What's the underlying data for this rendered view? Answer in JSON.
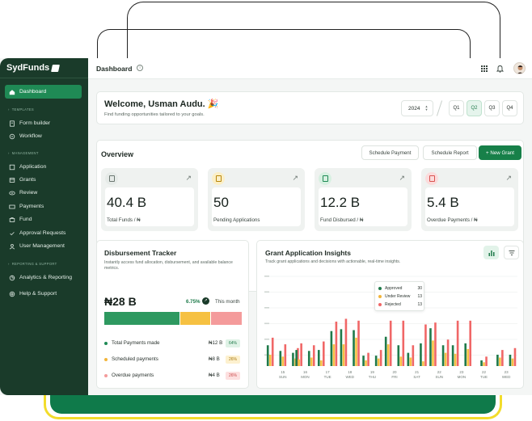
{
  "app": {
    "brand": "SydFunds",
    "page_title": "Dashboard"
  },
  "sidebar": {
    "items": [
      {
        "label": "Dashboard",
        "icon": "home-icon",
        "active": true
      },
      {
        "label": "Form builder",
        "icon": "form-icon"
      },
      {
        "label": "Workflow",
        "icon": "workflow-icon"
      },
      {
        "label": "Application",
        "icon": "application-icon"
      },
      {
        "label": "Grants",
        "icon": "grants-icon"
      },
      {
        "label": "Review",
        "icon": "eye-icon"
      },
      {
        "label": "Payments",
        "icon": "card-icon"
      },
      {
        "label": "Fund",
        "icon": "fund-icon"
      },
      {
        "label": "Approval Requests",
        "icon": "approval-icon"
      },
      {
        "label": "User Management",
        "icon": "users-icon"
      },
      {
        "label": "Analytics & Reporting",
        "icon": "analytics-icon"
      },
      {
        "label": "Help & Support",
        "icon": "help-icon"
      }
    ],
    "groups": {
      "templates": "Templates",
      "management": "Management",
      "reporting": "Reporting & Support"
    }
  },
  "welcome": {
    "greeting": "Welcome, Usman Audu.",
    "emoji": "🎉",
    "subtitle": "Find funding opportunities tailored to your goals.",
    "year": "2024",
    "quarters": [
      "Q1",
      "Q2",
      "Q3",
      "Q4"
    ],
    "active_quarter": "Q2"
  },
  "overview": {
    "title": "Overview",
    "actions": {
      "schedule_payment": "Schedule Payment",
      "schedule_report": "Schedule Report",
      "new_grant": "+ New Grant"
    },
    "stats": [
      {
        "value": "40.4 B",
        "label": "Total Funds / ₦",
        "icon_color": "#6b7771",
        "icon_bg": "#e6ebe8"
      },
      {
        "value": "50",
        "label": "Pending Applications",
        "icon_color": "#b8860b",
        "icon_bg": "#fbefc7"
      },
      {
        "value": "12.2 B",
        "label": "Fund Disbursed / ₦",
        "icon_color": "#1f8a55",
        "icon_bg": "#d7f0e1"
      },
      {
        "value": "5.4 B",
        "label": "Overdue Payments / ₦",
        "icon_color": "#d9534f",
        "icon_bg": "#fbdcdc"
      }
    ]
  },
  "tracker": {
    "title": "Disbursement Tracker",
    "subtitle": "Instantly access fund allocation, disbursement, and available balance metrics.",
    "amount": "₦28 B",
    "change": "6.75%",
    "period": "This month",
    "segments": [
      {
        "share": 64,
        "color": "#2e9960"
      },
      {
        "share": 26,
        "color": "#f6c142"
      },
      {
        "share": 26,
        "color": "#f49b9b"
      }
    ],
    "rows": [
      {
        "name": "Total Payments made",
        "value": "₦12 B",
        "pct": "64%",
        "dot": "#1f8a55",
        "badge_bg": "#dff2e6",
        "badge_fg": "#1f7a4a"
      },
      {
        "name": "Scheduled payments",
        "value": "₦8 B",
        "pct": "26%",
        "dot": "#f2b53a",
        "badge_bg": "#fdf1cf",
        "badge_fg": "#a6760c"
      },
      {
        "name": "Overdue payments",
        "value": "₦4 B",
        "pct": "26%",
        "dot": "#f49b9b",
        "badge_bg": "#fde0e0",
        "badge_fg": "#c94a4a"
      }
    ]
  },
  "insights": {
    "title": "Grant Application Insights",
    "subtitle": "Track grant applications and decisions with actionable, real-time insights.",
    "tooltip": [
      {
        "name": "Approved",
        "count": "30",
        "color": "#1f7a4a"
      },
      {
        "name": "Under Review",
        "count": "13",
        "color": "#f2b53a"
      },
      {
        "name": "Rejected",
        "count": "13",
        "color": "#f06767"
      }
    ]
  },
  "chart_data": {
    "type": "bar",
    "x": [
      [
        "15",
        "SUN"
      ],
      [
        "16",
        "MON"
      ],
      [
        "17",
        "TUE"
      ],
      [
        "18",
        "WED"
      ],
      [
        "19",
        "THU"
      ],
      [
        "20",
        "FRI"
      ],
      [
        "21",
        "SAT"
      ],
      [
        "22",
        "SUN"
      ],
      [
        "23",
        "MON"
      ],
      [
        "22",
        "TUE"
      ],
      [
        "23",
        "WED"
      ]
    ],
    "ylim": [
      0,
      100
    ],
    "grid": true,
    "groups": [
      [
        [
          22,
          12,
          30
        ],
        [
          16,
          10,
          23
        ],
        [
          14,
          8,
          19
        ]
      ],
      [
        [
          17,
          7,
          24
        ],
        [
          16,
          9,
          22
        ]
      ],
      [
        [
          17,
          6,
          26
        ],
        [
          37,
          23,
          47
        ]
      ],
      [
        [
          39,
          23,
          50
        ],
        [
          38,
          30,
          48
        ]
      ],
      [
        [
          11,
          6,
          14
        ],
        [
          11,
          8,
          17
        ]
      ],
      [
        [
          31,
          23,
          48
        ],
        [
          22,
          10,
          48
        ]
      ],
      [
        [
          14,
          9,
          22
        ],
        [
          24,
          5,
          44
        ]
      ],
      [
        [
          40,
          27,
          46
        ],
        [
          22,
          14,
          28
        ]
      ],
      [
        [
          22,
          13,
          48
        ],
        [
          24,
          18,
          48
        ]
      ],
      [
        [
          6,
          4,
          10
        ]
      ],
      [
        [
          12,
          9,
          17
        ],
        [
          12,
          8,
          19
        ]
      ]
    ],
    "colors": [
      "#1f7a4a",
      "#f6c142",
      "#f06767"
    ]
  }
}
